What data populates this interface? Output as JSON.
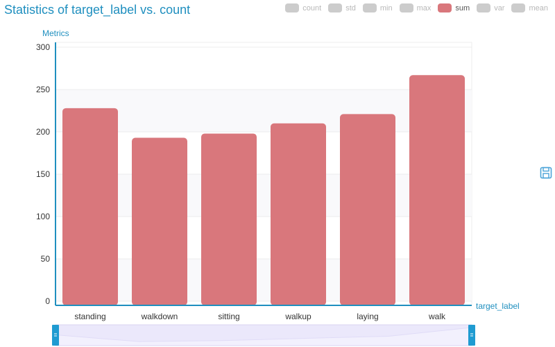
{
  "title": "Statistics of target_label vs. count",
  "legend": [
    {
      "label": "count",
      "active": false
    },
    {
      "label": "std",
      "active": false
    },
    {
      "label": "min",
      "active": false
    },
    {
      "label": "max",
      "active": false
    },
    {
      "label": "sum",
      "active": true
    },
    {
      "label": "var",
      "active": false
    },
    {
      "label": "mean",
      "active": false
    }
  ],
  "colors": {
    "accent": "#1f8fbf",
    "bar": "#d9777c",
    "legend_inactive": "#cccccc",
    "zoom_fill": "#ebe8fb"
  },
  "icons": {
    "save": "save-icon",
    "zoom_handle": "drag-handle-icon"
  },
  "chart_data": {
    "type": "bar",
    "title": "Statistics of target_label vs. count",
    "xlabel": "target_label",
    "ylabel": "Metrics",
    "categories": [
      "standing",
      "walkdown",
      "sitting",
      "walkup",
      "laying",
      "walk"
    ],
    "series": [
      {
        "name": "sum",
        "values": [
          228,
          193,
          198,
          210,
          221,
          267
        ]
      }
    ],
    "ylim": [
      0,
      300
    ],
    "yticks": [
      "0",
      "50",
      "100",
      "150",
      "200",
      "250",
      "300"
    ],
    "grid": true,
    "legend_position": "top-right",
    "zoom_slider": {
      "start": 0,
      "end": 1
    }
  }
}
